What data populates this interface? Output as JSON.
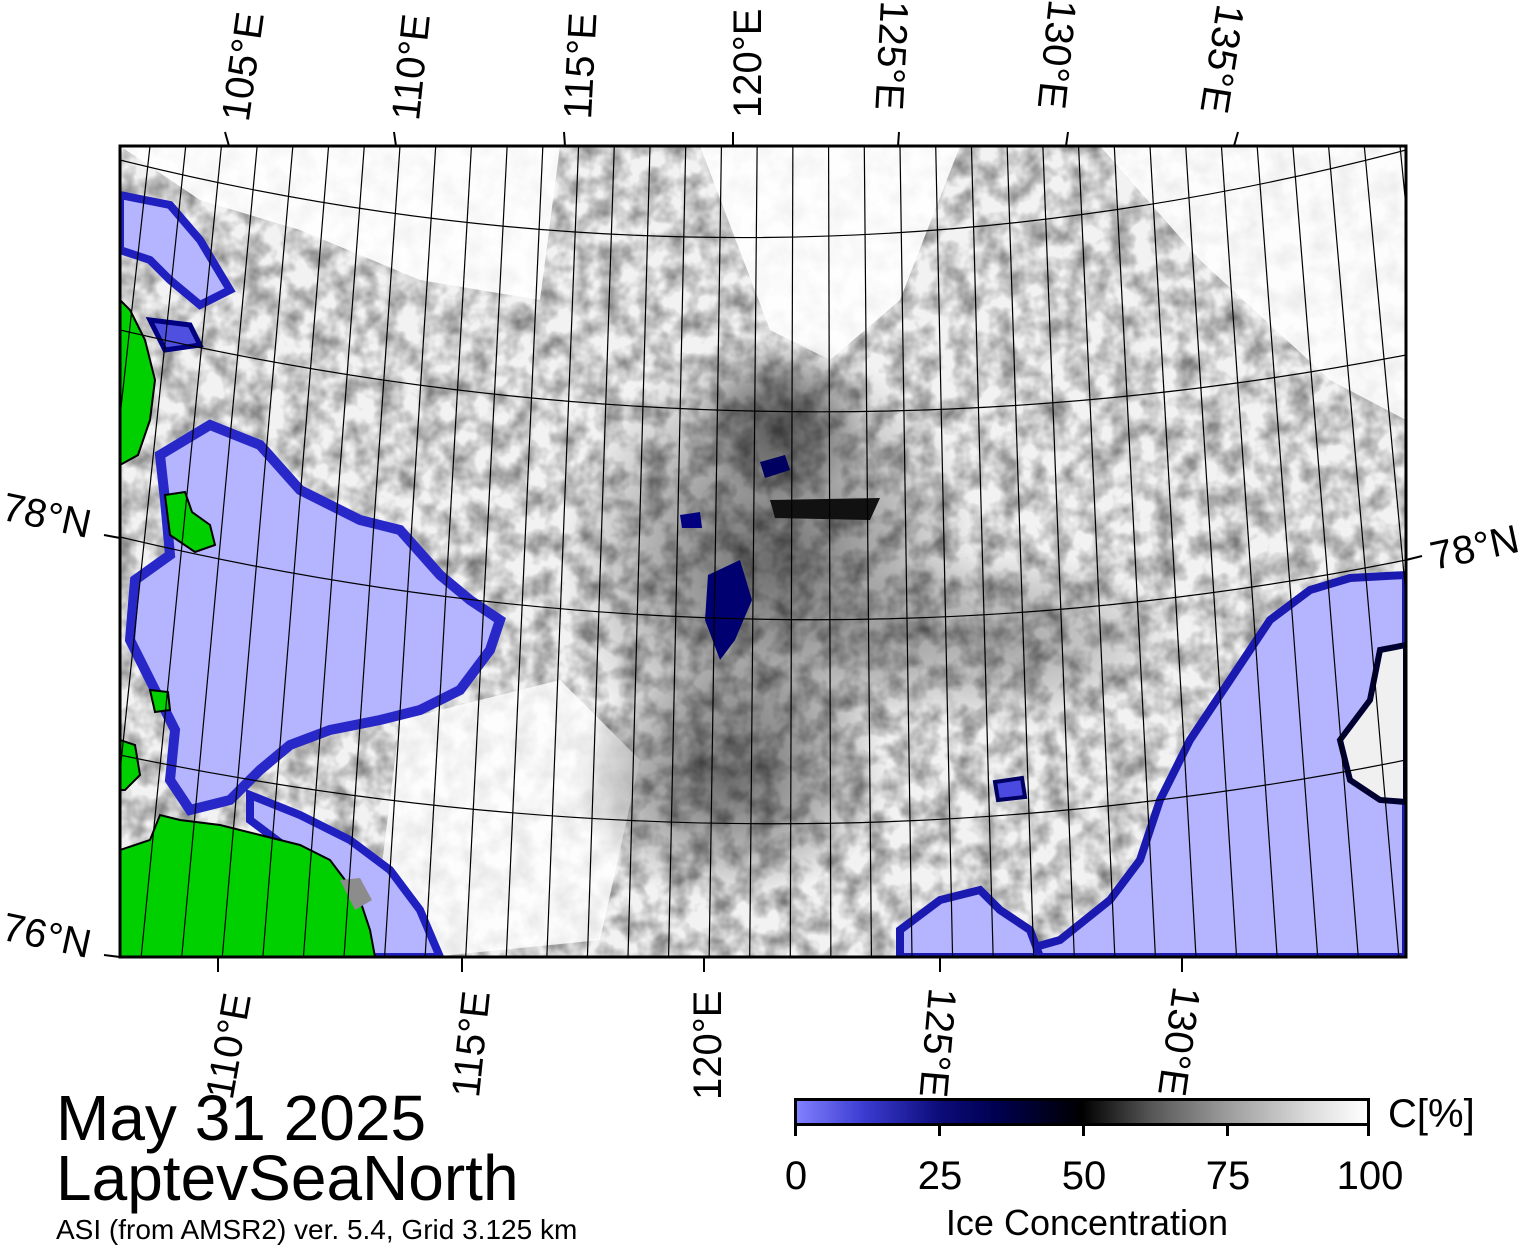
{
  "map": {
    "date": "May 31 2025",
    "region": "LaptevSeaNorth",
    "source": "ASI (from AMSR2) ver. 5.4,  Grid 3.125 km",
    "top_lon_labels": [
      "105°E",
      "110°E",
      "115°E",
      "120°E",
      "125°E",
      "130°E",
      "135°E"
    ],
    "bottom_lon_labels": [
      "110°E",
      "115°E",
      "120°E",
      "125°E",
      "130°E"
    ],
    "left_lat_labels": [
      "78°N",
      "76°N"
    ],
    "right_lat_labels": [
      "78°N"
    ],
    "colors": {
      "land": "#00d000",
      "open_water": "#b4b4ff",
      "ice_high": "#ffffff",
      "ice_low": "#000000",
      "coast_gray": "#8c8c8c"
    }
  },
  "colorbar": {
    "title": "Ice Concentration",
    "unit": "C[%]",
    "ticks": [
      "0",
      "25",
      "50",
      "75",
      "100"
    ],
    "range": [
      0,
      100
    ]
  }
}
